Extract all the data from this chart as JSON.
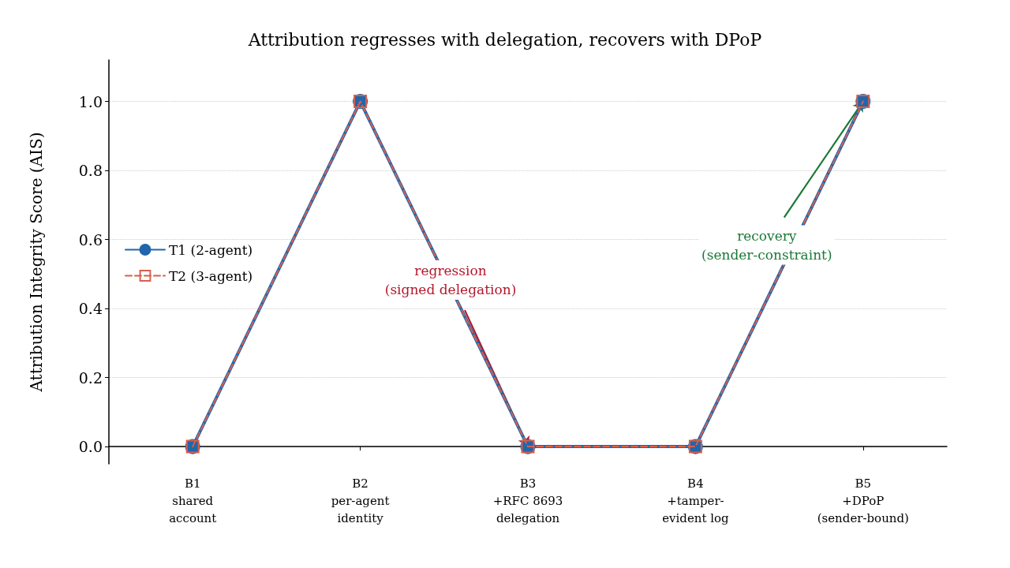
{
  "chart_data": {
    "type": "line",
    "title": "Attribution regresses with delegation, recovers with DPoP",
    "ylabel": "Attribution Integrity Score (AIS)",
    "categories": [
      "B1\nshared\naccount",
      "B2\nper-agent\nidentity",
      "B3\n+RFC 8693\ndelegation",
      "B4\n+tamper-\nevident log",
      "B5\n+DPoP\n(sender-bound)"
    ],
    "series": [
      {
        "name": "T1 (2-agent)",
        "color": "#2166ac",
        "values": [
          0,
          1,
          0,
          0,
          1
        ],
        "marker": "circle",
        "line_style": "solid"
      },
      {
        "name": "T2 (3-agent)",
        "color": "#d6604d",
        "values": [
          0,
          1,
          0,
          0,
          1
        ],
        "marker": "square",
        "line_style": "dashed"
      }
    ],
    "ylim": [
      -0.05,
      1.12
    ],
    "yticks": [
      {
        "value": 0,
        "label": "0.0"
      },
      {
        "value": 0.2,
        "label": "0.2"
      },
      {
        "value": 0.4,
        "label": "0.4"
      },
      {
        "value": 0.6,
        "label": "0.6"
      },
      {
        "value": 0.8,
        "label": "0.8"
      },
      {
        "value": 1,
        "label": "1.0"
      }
    ],
    "grid": "y",
    "legend": "left",
    "annotations": [
      {
        "text": "regression\n(signed delegation)",
        "x": "B3\n+RFC 8693\ndelegation",
        "y": 0
      },
      {
        "text": "recovery\n(sender-constraint)",
        "x": "B5\n+DPoP\n(sender-bound)",
        "y": 1
      }
    ]
  }
}
